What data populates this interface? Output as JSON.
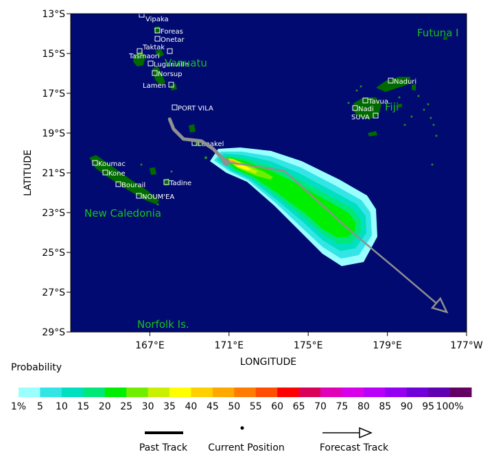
{
  "axes": {
    "xlabel": "LONGITUDE",
    "ylabel": "LATITUDE",
    "lon_ticks": [
      "167°E",
      "171°E",
      "175°E",
      "179°E",
      "177°W"
    ],
    "lat_ticks": [
      "13°S",
      "15°S",
      "17°S",
      "19°S",
      "21°S",
      "23°S",
      "25°S",
      "27°S",
      "29°S"
    ]
  },
  "regions": [
    "Vanuatu",
    "Fiji",
    "Futuna I",
    "New Caledonia",
    "Norfolk Is."
  ],
  "places": [
    "Vipaka",
    "Foreas",
    "Onetar",
    "Taktak",
    "Tasmaori",
    "Luganville",
    "Norsup",
    "Lamen",
    "PORT VILA",
    "Lenakel",
    "Koumac",
    "Kone",
    "Bourail",
    "Tadine",
    "NOUM'EA",
    "Naduri",
    "Tavua",
    "Nadi",
    "SUVA"
  ],
  "probability_scale": {
    "title": "Probability",
    "labels": [
      "1%",
      "5",
      "10",
      "15",
      "20",
      "25",
      "30",
      "35",
      "40",
      "45",
      "50",
      "55",
      "60",
      "65",
      "70",
      "75",
      "80",
      "85",
      "90",
      "95",
      "100%"
    ],
    "colors": [
      "#99ffff",
      "#33e5e5",
      "#00e0c0",
      "#00e87a",
      "#00ee00",
      "#70ee00",
      "#c8f000",
      "#ffff00",
      "#ffd000",
      "#ffa800",
      "#ff7c00",
      "#ff4e00",
      "#ff0000",
      "#d80058",
      "#e000b8",
      "#d800e8",
      "#b800f8",
      "#9400f0",
      "#7000d8",
      "#6000b0",
      "#640064"
    ]
  },
  "legend": {
    "past_track": "Past Track",
    "current_position": "Current Position",
    "forecast_track": "Forecast Track"
  },
  "colors": {
    "ocean": "#000a70",
    "land": "#006a00",
    "track": "#909090",
    "label_green": "#19c419"
  },
  "chart_data": {
    "type": "map",
    "x_range_lon": [
      163,
      183
    ],
    "y_range_lat": [
      -29,
      -13
    ],
    "past_track": [
      [
        168.0,
        -18.3
      ],
      [
        168.2,
        -18.8
      ],
      [
        168.7,
        -19.3
      ],
      [
        169.6,
        -19.4
      ],
      [
        170.2,
        -19.8
      ],
      [
        170.7,
        -20.3
      ],
      [
        170.85,
        -20.45
      ]
    ],
    "current_position": [
      170.85,
      -20.45
    ],
    "forecast_track": [
      [
        170.85,
        -20.45
      ],
      [
        173.8,
        -20.9
      ],
      [
        177.0,
        -23.8
      ],
      [
        179.4,
        -25.8
      ],
      [
        182.0,
        -28.0
      ]
    ],
    "probability_levels": [
      1,
      5,
      10,
      15,
      20,
      25,
      30,
      35,
      40,
      45,
      50,
      55,
      60,
      65,
      70,
      75,
      80,
      85,
      90,
      95,
      100
    ]
  }
}
